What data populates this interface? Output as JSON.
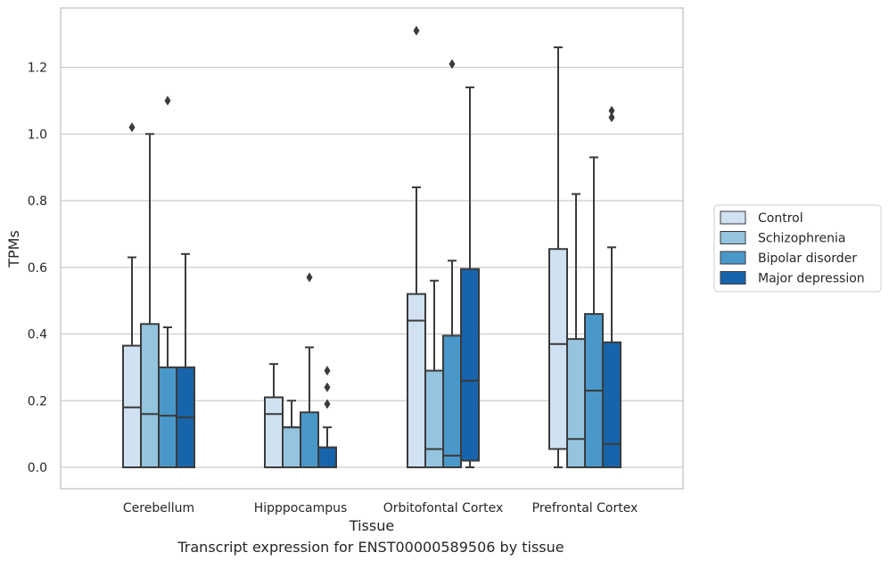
{
  "caption": "Transcript expression for ENST00000589506 by tissue",
  "chart_data": {
    "type": "boxplot",
    "xlabel": "Tissue",
    "ylabel": "TPMs",
    "ylim": [
      -0.063,
      1.39
    ],
    "yticks": [
      0.0,
      0.2,
      0.4,
      0.6,
      0.8,
      1.0,
      1.2
    ],
    "ytick_labels": [
      "0.0",
      "0.2",
      "0.4",
      "0.6",
      "0.8",
      "1.0",
      "1.2"
    ],
    "grid": "horizontal",
    "legend_position": "right",
    "categories": [
      "Cerebellum",
      "Hipppocampus",
      "Orbitofontal Cortex",
      "Prefrontal Cortex"
    ],
    "series": [
      {
        "name": "Control",
        "color": "#d0e1f2",
        "boxes": [
          {
            "whislo": 0.0,
            "q1": 0.0,
            "med": 0.18,
            "q3": 0.365,
            "whishi": 0.63,
            "fliers": [
              1.02
            ]
          },
          {
            "whislo": 0.0,
            "q1": 0.0,
            "med": 0.16,
            "q3": 0.21,
            "whishi": 0.31,
            "fliers": []
          },
          {
            "whislo": 0.0,
            "q1": 0.0,
            "med": 0.44,
            "q3": 0.52,
            "whishi": 0.84,
            "fliers": [
              1.31
            ]
          },
          {
            "whislo": 0.0,
            "q1": 0.055,
            "med": 0.37,
            "q3": 0.655,
            "whishi": 1.26,
            "fliers": []
          }
        ]
      },
      {
        "name": "Schizophrenia",
        "color": "#94c4df",
        "boxes": [
          {
            "whislo": 0.0,
            "q1": 0.0,
            "med": 0.16,
            "q3": 0.43,
            "whishi": 1.0,
            "fliers": []
          },
          {
            "whislo": 0.0,
            "q1": 0.0,
            "med": 0.12,
            "q3": 0.12,
            "whishi": 0.2,
            "fliers": []
          },
          {
            "whislo": 0.0,
            "q1": 0.0,
            "med": 0.055,
            "q3": 0.29,
            "whishi": 0.56,
            "fliers": []
          },
          {
            "whislo": 0.0,
            "q1": 0.0,
            "med": 0.085,
            "q3": 0.385,
            "whishi": 0.82,
            "fliers": []
          }
        ]
      },
      {
        "name": "Bipolar disorder",
        "color": "#4a98c9",
        "boxes": [
          {
            "whislo": 0.0,
            "q1": 0.0,
            "med": 0.155,
            "q3": 0.3,
            "whishi": 0.42,
            "fliers": [
              1.1
            ]
          },
          {
            "whislo": 0.0,
            "q1": 0.0,
            "med": 0.0,
            "q3": 0.165,
            "whishi": 0.36,
            "fliers": [
              0.57
            ]
          },
          {
            "whislo": 0.0,
            "q1": 0.0,
            "med": 0.035,
            "q3": 0.395,
            "whishi": 0.62,
            "fliers": [
              1.21
            ]
          },
          {
            "whislo": 0.0,
            "q1": 0.0,
            "med": 0.23,
            "q3": 0.46,
            "whishi": 0.93,
            "fliers": []
          }
        ]
      },
      {
        "name": "Major depression",
        "color": "#1764ab",
        "boxes": [
          {
            "whislo": 0.0,
            "q1": 0.0,
            "med": 0.15,
            "q3": 0.3,
            "whishi": 0.64,
            "fliers": []
          },
          {
            "whislo": 0.0,
            "q1": 0.0,
            "med": 0.0,
            "q3": 0.06,
            "whishi": 0.12,
            "fliers": [
              0.19,
              0.24,
              0.29
            ]
          },
          {
            "whislo": 0.0,
            "q1": 0.02,
            "med": 0.26,
            "q3": 0.595,
            "whishi": 1.14,
            "fliers": []
          },
          {
            "whislo": 0.0,
            "q1": 0.0,
            "med": 0.07,
            "q3": 0.375,
            "whishi": 0.66,
            "fliers": [
              1.05,
              1.07
            ]
          }
        ]
      }
    ]
  }
}
